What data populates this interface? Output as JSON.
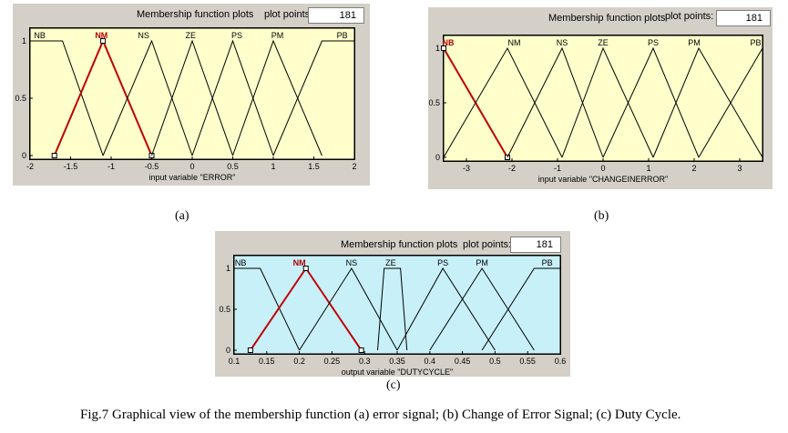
{
  "header": {
    "title": "Membership function plots",
    "plot_points_label": "plot points:"
  },
  "caption": "Fig.7 Graphical view of the membership function (a) error signal; (b) Change of Error Signal; (c) Duty Cycle.",
  "colors": {
    "plot_a": "#ffffcc",
    "plot_b": "#ffffcc",
    "plot_c": "#c8f0f8",
    "selected": "#c00000",
    "line": "#000000"
  },
  "chart_data": [
    {
      "panel": "a",
      "type": "line",
      "subplot_label": "(a)",
      "plot_points": "181",
      "xlabel": "input variable \"ERROR\"",
      "xlim": [
        -2,
        2
      ],
      "ylim": [
        0,
        1
      ],
      "xticks": [
        -2,
        -1.5,
        -1,
        -0.5,
        0,
        0.5,
        1,
        1.5,
        2
      ],
      "yticks": [
        0,
        0.5,
        1
      ],
      "selected": "NM",
      "series": [
        {
          "name": "NB",
          "points": [
            [
              -2,
              1
            ],
            [
              -1.6,
              1
            ],
            [
              -1.1,
              0
            ]
          ]
        },
        {
          "name": "NM",
          "points": [
            [
              -1.7,
              0
            ],
            [
              -1.1,
              1
            ],
            [
              -0.5,
              0
            ]
          ]
        },
        {
          "name": "NS",
          "points": [
            [
              -1.1,
              0
            ],
            [
              -0.5,
              1
            ],
            [
              0,
              0
            ]
          ]
        },
        {
          "name": "ZE",
          "points": [
            [
              -0.5,
              0
            ],
            [
              0,
              1
            ],
            [
              0.5,
              0
            ]
          ]
        },
        {
          "name": "PS",
          "points": [
            [
              0,
              0
            ],
            [
              0.5,
              1
            ],
            [
              1,
              0
            ]
          ]
        },
        {
          "name": "PM",
          "points": [
            [
              0.5,
              0
            ],
            [
              1,
              1
            ],
            [
              1.6,
              0
            ]
          ]
        },
        {
          "name": "PB",
          "points": [
            [
              1,
              0
            ],
            [
              1.6,
              1
            ],
            [
              2,
              1
            ]
          ]
        }
      ],
      "mf_labels": [
        {
          "text": "NB",
          "x": -1.88
        },
        {
          "text": "NM",
          "x": -1.12
        },
        {
          "text": "NS",
          "x": -0.6
        },
        {
          "text": "ZE",
          "x": -0.02
        },
        {
          "text": "PS",
          "x": 0.55
        },
        {
          "text": "PM",
          "x": 1.05
        },
        {
          "text": "PB",
          "x": 1.85
        }
      ]
    },
    {
      "panel": "b",
      "type": "line",
      "subplot_label": "(b)",
      "plot_points": "181",
      "xlabel": "input variable \"CHANGEINERROR\"",
      "xlim": [
        -3.5,
        3.5
      ],
      "ylim": [
        0,
        1
      ],
      "xticks": [
        -3,
        -2,
        -1,
        0,
        1,
        2,
        3
      ],
      "yticks": [
        0,
        0.5,
        1
      ],
      "selected": "NB",
      "series": [
        {
          "name": "NB",
          "points": [
            [
              -3.5,
              1
            ],
            [
              -2.1,
              0
            ]
          ]
        },
        {
          "name": "NM",
          "points": [
            [
              -3.5,
              0
            ],
            [
              -2.1,
              1
            ],
            [
              -0.9,
              0
            ]
          ]
        },
        {
          "name": "NS",
          "points": [
            [
              -2.1,
              0
            ],
            [
              -0.9,
              1
            ],
            [
              0,
              0
            ]
          ]
        },
        {
          "name": "ZE",
          "points": [
            [
              -0.9,
              0
            ],
            [
              0,
              1
            ],
            [
              1.1,
              0
            ]
          ]
        },
        {
          "name": "PS",
          "points": [
            [
              0,
              0
            ],
            [
              1.1,
              1
            ],
            [
              2.1,
              0
            ]
          ]
        },
        {
          "name": "PM",
          "points": [
            [
              1.1,
              0
            ],
            [
              2.1,
              1
            ],
            [
              3.5,
              0
            ]
          ]
        },
        {
          "name": "PB",
          "points": [
            [
              2.1,
              0
            ],
            [
              3.5,
              1
            ]
          ]
        }
      ],
      "mf_labels": [
        {
          "text": "NB",
          "x": -3.4
        },
        {
          "text": "NM",
          "x": -1.95
        },
        {
          "text": "NS",
          "x": -0.9
        },
        {
          "text": "ZE",
          "x": 0.0
        },
        {
          "text": "PS",
          "x": 1.1
        },
        {
          "text": "PM",
          "x": 2.0
        },
        {
          "text": "PB",
          "x": 3.35
        }
      ]
    },
    {
      "panel": "c",
      "type": "line",
      "subplot_label": "(c)",
      "plot_points": "181",
      "xlabel": "output variable \"DUTYCYCLE\"",
      "xlim": [
        0.1,
        0.6
      ],
      "ylim": [
        0,
        1
      ],
      "xticks": [
        0.1,
        0.15,
        0.2,
        0.25,
        0.3,
        0.35,
        0.4,
        0.45,
        0.5,
        0.55,
        0.6
      ],
      "yticks": [
        0,
        0.5,
        1
      ],
      "selected": "NM",
      "series": [
        {
          "name": "NB",
          "points": [
            [
              0.1,
              1
            ],
            [
              0.14,
              1
            ],
            [
              0.2,
              0
            ]
          ]
        },
        {
          "name": "NM",
          "points": [
            [
              0.125,
              0
            ],
            [
              0.21,
              1
            ],
            [
              0.295,
              0
            ]
          ]
        },
        {
          "name": "NS",
          "points": [
            [
              0.2,
              0
            ],
            [
              0.28,
              1
            ],
            [
              0.35,
              0
            ]
          ]
        },
        {
          "name": "ZE",
          "points": [
            [
              0.32,
              0
            ],
            [
              0.33,
              1
            ],
            [
              0.355,
              1
            ],
            [
              0.365,
              0
            ]
          ]
        },
        {
          "name": "PS",
          "points": [
            [
              0.35,
              0
            ],
            [
              0.42,
              1
            ],
            [
              0.5,
              0
            ]
          ]
        },
        {
          "name": "PM",
          "points": [
            [
              0.4,
              0
            ],
            [
              0.48,
              1
            ],
            [
              0.56,
              0
            ]
          ]
        },
        {
          "name": "PB",
          "points": [
            [
              0.48,
              0
            ],
            [
              0.56,
              1
            ],
            [
              0.6,
              1
            ]
          ]
        }
      ],
      "mf_labels": [
        {
          "text": "NB",
          "x": 0.11
        },
        {
          "text": "NM",
          "x": 0.2
        },
        {
          "text": "NS",
          "x": 0.28
        },
        {
          "text": "ZE",
          "x": 0.34
        },
        {
          "text": "PS",
          "x": 0.42
        },
        {
          "text": "PM",
          "x": 0.48
        },
        {
          "text": "PB",
          "x": 0.58
        }
      ]
    }
  ]
}
